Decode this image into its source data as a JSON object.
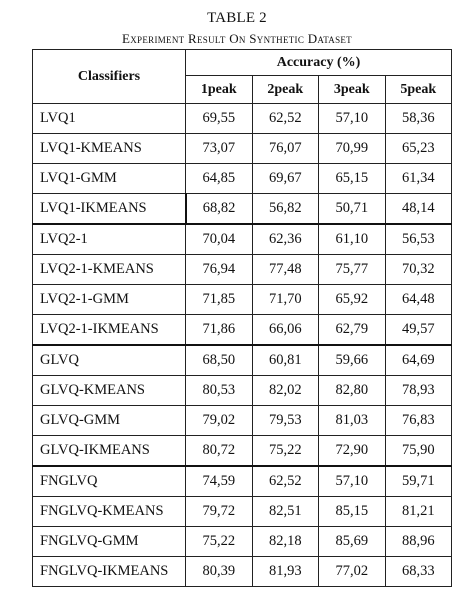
{
  "table_number": "TABLE 2",
  "caption": "Experiment Result On Synthetic Dataset",
  "header": {
    "classifiers_label": "Classifiers",
    "accuracy_label": "Accuracy (%)",
    "columns": [
      "1peak",
      "2peak",
      "3peak",
      "5peak"
    ]
  },
  "rows": [
    {
      "name": "LVQ1",
      "values": [
        "69,55",
        "62,52",
        "57,10",
        "58,36"
      ],
      "bold": []
    },
    {
      "name": "LVQ1-KMEANS",
      "values": [
        "73,07",
        "76,07",
        "70,99",
        "65,23"
      ],
      "bold": []
    },
    {
      "name": "LVQ1-GMM",
      "values": [
        "64,85",
        "69,67",
        "65,15",
        "61,34"
      ],
      "bold": []
    },
    {
      "name": "LVQ1-IKMEANS",
      "values": [
        "68,82",
        "56,82",
        "50,71",
        "48,14"
      ],
      "bold": []
    },
    {
      "name": "LVQ2-1",
      "values": [
        "70,04",
        "62,36",
        "61,10",
        "56,53"
      ],
      "bold": []
    },
    {
      "name": "LVQ2-1-KMEANS",
      "values": [
        "76,94",
        "77,48",
        "75,77",
        "70,32"
      ],
      "bold": []
    },
    {
      "name": "LVQ2-1-GMM",
      "values": [
        "71,85",
        "71,70",
        "65,92",
        "64,48"
      ],
      "bold": []
    },
    {
      "name": "LVQ2-1-IKMEANS",
      "values": [
        "71,86",
        "66,06",
        "62,79",
        "49,57"
      ],
      "bold": []
    },
    {
      "name": "GLVQ",
      "values": [
        "68,50",
        "60,81",
        "59,66",
        "64,69"
      ],
      "bold": []
    },
    {
      "name": "GLVQ-KMEANS",
      "values": [
        "80,53",
        "82,02",
        "82,80",
        "78,93"
      ],
      "bold": []
    },
    {
      "name": "GLVQ-GMM",
      "values": [
        "79,02",
        "79,53",
        "81,03",
        "76,83"
      ],
      "bold": []
    },
    {
      "name": "GLVQ-IKMEANS",
      "values": [
        "80,72",
        "75,22",
        "72,90",
        "75,90"
      ],
      "bold": [
        0
      ]
    },
    {
      "name": "FNGLVQ",
      "values": [
        "74,59",
        "62,52",
        "57,10",
        "59,71"
      ],
      "bold": []
    },
    {
      "name": "FNGLVQ-KMEANS",
      "values": [
        "79,72",
        "82,51",
        "85,15",
        "81,21"
      ],
      "bold": [
        1
      ]
    },
    {
      "name": "FNGLVQ-GMM",
      "values": [
        "75,22",
        "82,18",
        "85,69",
        "88,96"
      ],
      "bold": [
        2,
        3
      ]
    },
    {
      "name": "FNGLVQ-IKMEANS",
      "values": [
        "80,39",
        "81,93",
        "77,02",
        "68,33"
      ],
      "bold": []
    }
  ]
}
